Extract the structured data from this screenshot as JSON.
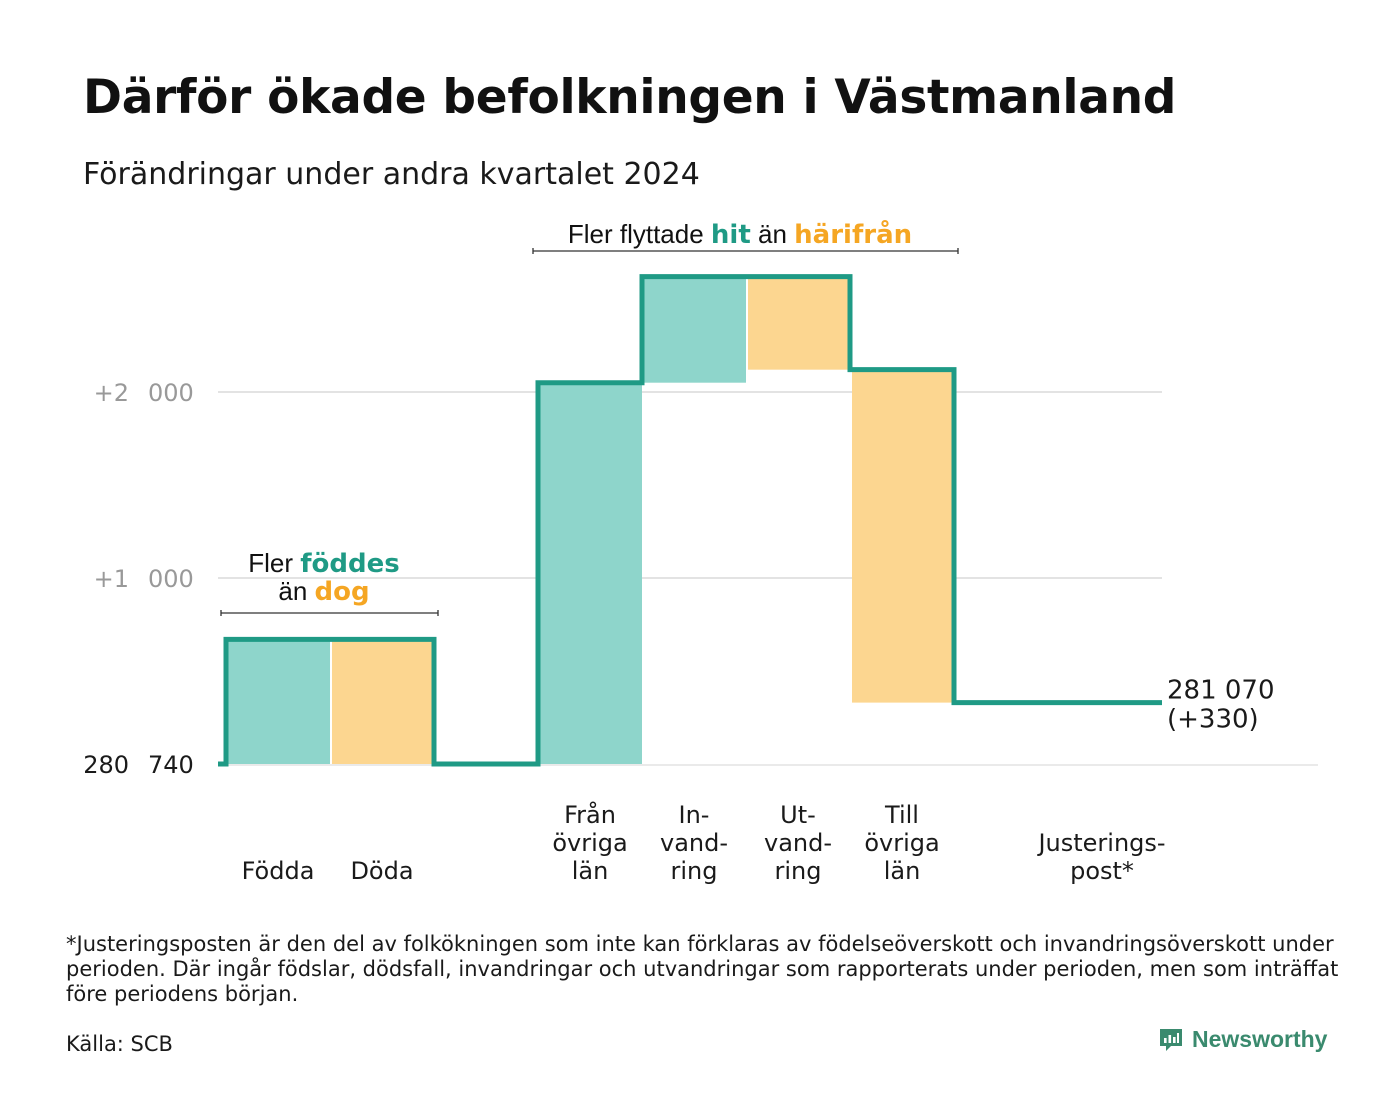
{
  "title": "Därför ökade befolkningen i Västmanland",
  "subtitle": "Förändringar under andra kvartalet 2024",
  "footnote": "*Justeringsposten är den del av folkökningen som inte kan förklaras av födelseöverskott och invandringsöverskott under perioden. Där ingår födslar, dödsfall, invandringar och utvandringar som rapporterats under perioden, men som inträffat före periodens början.",
  "source": "Källa: SCB",
  "brand": "Newsworthy",
  "colors": {
    "increase": "#8ed5cb",
    "decrease": "#fcd690",
    "line": "#1f9a85",
    "orange_text": "#f5a623",
    "grid": "#e3e3e3",
    "tick_text": "#999999"
  },
  "annotations": {
    "births": {
      "l1_pre": "Fler ",
      "l1_em": "föddes",
      "l2_pre": "än ",
      "l2_em": "dog"
    },
    "moves": {
      "pre": "Fler flyttade ",
      "em1": "hit",
      "mid": " än ",
      "em2": "härifrån"
    }
  },
  "chart_data": {
    "type": "waterfall",
    "title": "Därför ökade befolkningen i Västmanland",
    "subtitle": "Förändringar under andra kvartalet 2024",
    "start_value": 280740,
    "end_value": 281070,
    "end_label": [
      "281 070",
      "(+330)"
    ],
    "y_ticks": [
      {
        "value": 280740,
        "label": [
          "280",
          "740"
        ],
        "dark": true
      },
      {
        "value": 281740,
        "label": [
          "+1",
          "000"
        ],
        "dark": false
      },
      {
        "value": 282740,
        "label": [
          "+2",
          "000"
        ],
        "dark": false
      }
    ],
    "ylim": [
      280740,
      283740
    ],
    "grid": true,
    "categories": [
      {
        "label": [
          "Födda"
        ],
        "change": 670,
        "kind": "increase"
      },
      {
        "label": [
          "Döda"
        ],
        "change": -670,
        "kind": "decrease"
      },
      {
        "label": [],
        "change": 0,
        "kind": "gap"
      },
      {
        "label": [
          "Från",
          "övriga",
          "län"
        ],
        "change": 2050,
        "kind": "increase"
      },
      {
        "label": [
          "In-",
          "vand-",
          "ring"
        ],
        "change": 570,
        "kind": "increase"
      },
      {
        "label": [
          "Ut-",
          "vand-",
          "ring"
        ],
        "change": -500,
        "kind": "decrease"
      },
      {
        "label": [
          "Till",
          "övriga",
          "län"
        ],
        "change": -1790,
        "kind": "decrease"
      },
      {
        "label": [],
        "change": 0,
        "kind": "gap"
      },
      {
        "label": [
          "Justerings-",
          "post*"
        ],
        "change": 0,
        "kind": "adjustment"
      }
    ]
  }
}
